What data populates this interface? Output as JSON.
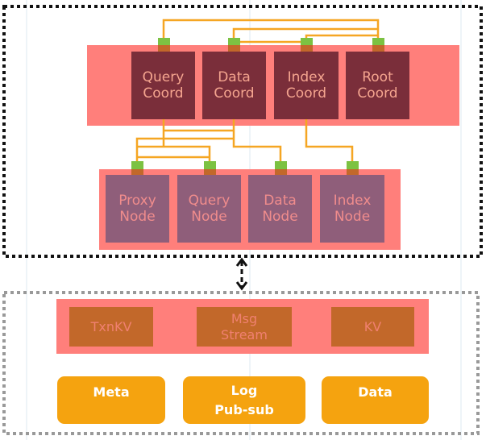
{
  "colors": {
    "band": "#FF7F7B",
    "coord_box": "#7A2E3A",
    "node_box": "#8F5E7A",
    "storage_box": "#C2682A",
    "service_box": "#F5A30F",
    "wire": "#F5A623",
    "connector": "#7CC242"
  },
  "coordinators": [
    {
      "label": "Query\nCoord"
    },
    {
      "label": "Data\nCoord"
    },
    {
      "label": "Index\nCoord"
    },
    {
      "label": "Root\nCoord"
    }
  ],
  "nodes": [
    {
      "label": "Proxy\nNode"
    },
    {
      "label": "Query\nNode"
    },
    {
      "label": "Data\nNode"
    },
    {
      "label": "Index\nNode"
    }
  ],
  "storage": [
    {
      "label": "TxnKV"
    },
    {
      "label": "Msg\nStream"
    },
    {
      "label": "KV"
    }
  ],
  "services": [
    {
      "label": "Meta"
    },
    {
      "label": "Log\nPub-sub"
    },
    {
      "label": "Data"
    }
  ]
}
